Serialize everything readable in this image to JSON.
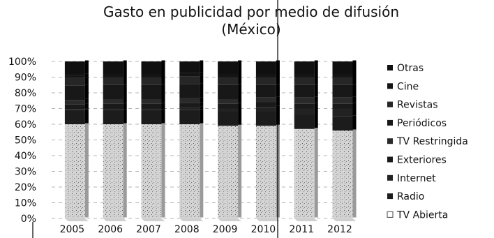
{
  "chart_data": {
    "type": "bar",
    "stacked": "percent",
    "title": "Gasto en publicidad por medio de difusión",
    "subtitle": "(México)",
    "xlabel": "",
    "ylabel": "",
    "ylim": [
      0,
      100
    ],
    "y_ticks": [
      "0%",
      "10%",
      "20%",
      "30%",
      "40%",
      "50%",
      "60%",
      "70%",
      "80%",
      "90%",
      "100%"
    ],
    "categories": [
      "2005",
      "2006",
      "2007",
      "2008",
      "2009",
      "2010",
      "2011",
      "2012"
    ],
    "legend_position": "right",
    "series": [
      {
        "name": "TV Abierta",
        "color": "#cfcfcf",
        "values": [
          60,
          60,
          60,
          60,
          59,
          59,
          57,
          56
        ]
      },
      {
        "name": "Radio",
        "color": "#1c1c1c",
        "values": [
          9,
          9,
          9,
          9,
          9,
          9,
          9,
          9
        ]
      },
      {
        "name": "Internet",
        "color": "#222222",
        "values": [
          0.5,
          1,
          1,
          1.5,
          2,
          3,
          4,
          5
        ]
      },
      {
        "name": "Exteriores",
        "color": "#1a1a1a",
        "values": [
          3,
          3,
          3,
          3,
          3,
          3,
          3,
          3
        ]
      },
      {
        "name": "TV Restringida",
        "color": "#2a2a2a",
        "values": [
          3,
          3,
          3,
          3,
          3,
          3,
          4,
          4
        ]
      },
      {
        "name": "Periódicos",
        "color": "#181818",
        "values": [
          9,
          9,
          9,
          9,
          9,
          8,
          8,
          8
        ]
      },
      {
        "name": "Revistas",
        "color": "#262626",
        "values": [
          5,
          5,
          5,
          5,
          5,
          5,
          5,
          5
        ]
      },
      {
        "name": "Cine",
        "color": "#141414",
        "values": [
          2,
          2,
          2,
          2,
          2,
          2,
          2,
          2
        ]
      },
      {
        "name": "Otras",
        "color": "#101010",
        "values": [
          8.5,
          8,
          8,
          7.5,
          8,
          8,
          8,
          8
        ]
      }
    ],
    "legend_order": [
      "Otras",
      "Cine",
      "Revistas",
      "Periódicos",
      "TV Restringida",
      "Exteriores",
      "Internet",
      "Radio",
      "TV Abierta"
    ]
  }
}
